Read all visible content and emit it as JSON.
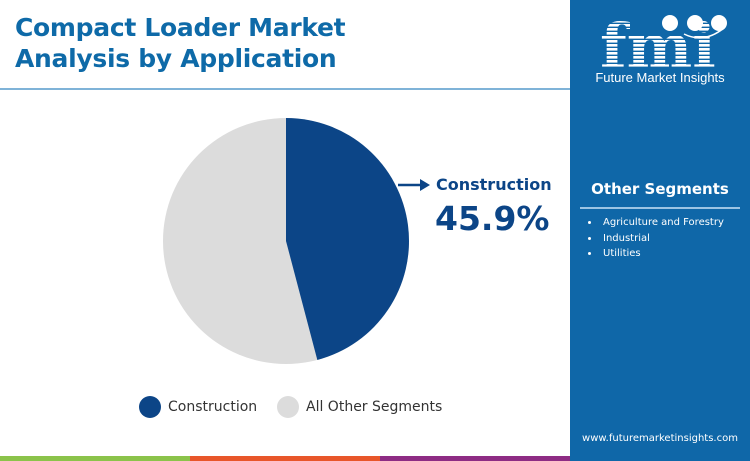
{
  "title": "Compact Loader Market Analysis by Application",
  "brand": {
    "logo_letters": "fmi",
    "name": "Future Market Insights",
    "url": "www.futuremarketinsights.com"
  },
  "other_segments": {
    "title": "Other Segments",
    "items": [
      "Agriculture and Forestry",
      "Industrial",
      "Utilities"
    ]
  },
  "callout": {
    "label": "Construction",
    "value": "45.9%"
  },
  "legend": [
    {
      "label": "Construction",
      "color": "#0c4587"
    },
    {
      "label": "All Other Segments",
      "color": "#dcdcdc"
    }
  ],
  "colors": {
    "title": "#0e6aa8",
    "sidebar": "#0f67a8",
    "stripe_green": "#8bc34a",
    "stripe_orange": "#e8562a",
    "stripe_purple": "#8e2c84"
  },
  "chart_data": {
    "type": "pie",
    "title": "Compact Loader Market Analysis by Application",
    "categories": [
      "Construction",
      "All Other Segments"
    ],
    "values": [
      45.9,
      54.1
    ],
    "colors": [
      "#0c4587",
      "#dcdcdc"
    ],
    "start_angle": "12 o'clock, clockwise",
    "annotations": [
      {
        "label": "Construction",
        "value": "45.9%"
      }
    ],
    "legend_position": "bottom"
  }
}
